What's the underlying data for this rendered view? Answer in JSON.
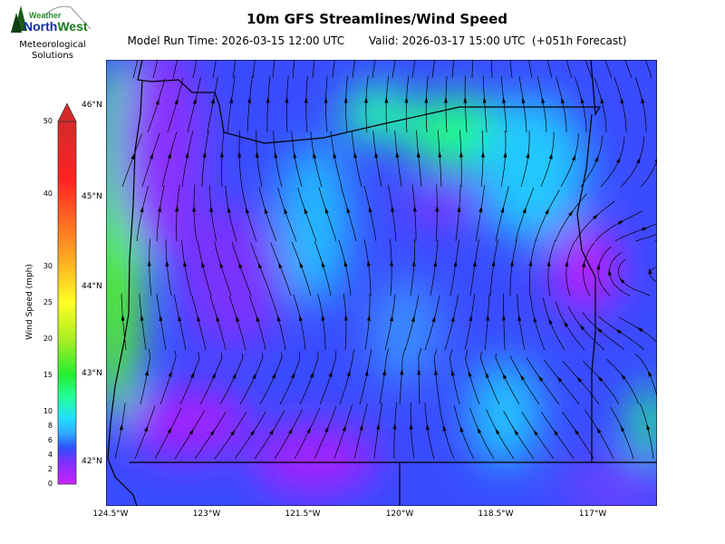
{
  "header": {
    "title": "10m GFS Streamlines/Wind Speed",
    "subtitle": "Model Run Time: 2026-03-15 12:00 UTC       Valid: 2026-03-17 15:00 UTC  (+051h Forecast)"
  },
  "logo": {
    "line1": "Weather",
    "line2": "NorthWest",
    "tagline": "Meteorological Solutions"
  },
  "colorbar": {
    "label": "Wind Speed (mph)",
    "ticks": [
      "0",
      "2",
      "4",
      "6",
      "8",
      "10",
      "15",
      "20",
      "25",
      "30",
      "40",
      "50"
    ],
    "min": 0,
    "max": 50,
    "extend": "max",
    "colors": [
      "#cc22ff",
      "#7f2fff",
      "#2f4fff",
      "#2faaff",
      "#22ddff",
      "#22ff99",
      "#22ee33",
      "#aaee22",
      "#ffff22",
      "#ffaa22",
      "#ff5522",
      "#ff2222",
      "#d42a2a"
    ]
  },
  "map": {
    "lat_labels": [
      "46°N",
      "45°N",
      "44°N",
      "43°N",
      "42°N"
    ],
    "lon_labels": [
      "124.5°W",
      "123°W",
      "121.5°W",
      "120°W",
      "118.5°W",
      "117°W"
    ]
  }
}
